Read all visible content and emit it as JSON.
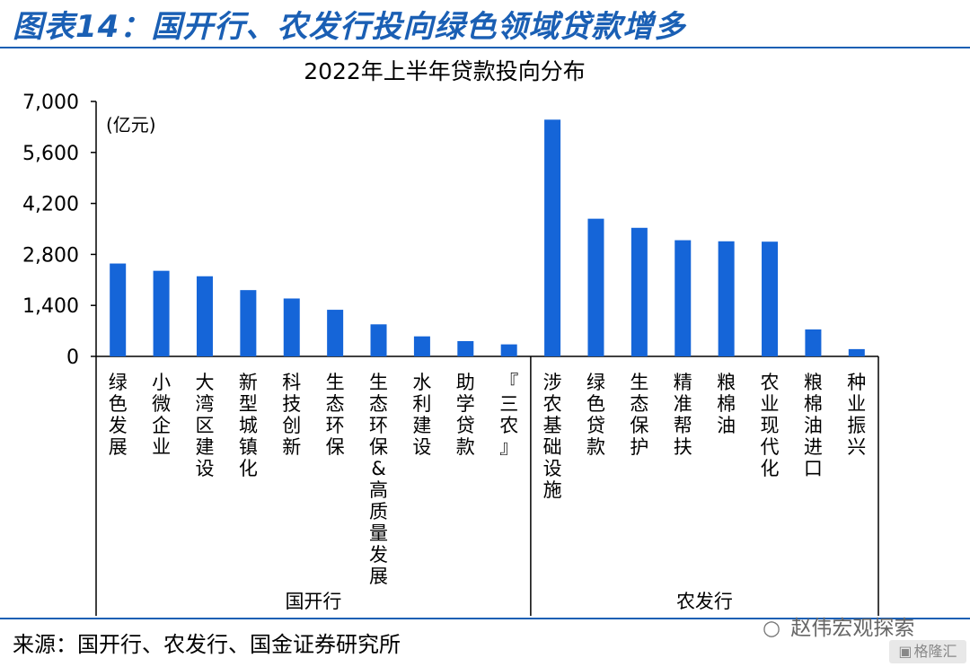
{
  "header": {
    "title": "图表14：国开行、农发行投向绿色领域贷款增多"
  },
  "source": {
    "text": "来源：国开行、农发行、国金证券研究所"
  },
  "watermark": {
    "text": "赵伟宏观探索",
    "icon": "wechat-icon"
  },
  "badge": {
    "text": "格隆汇",
    "icon": "gelonghui-logo-icon"
  },
  "colors": {
    "accent": "#1a5fb4",
    "bar": "#1565d8",
    "axis": "#000000"
  },
  "chart_data": {
    "type": "bar",
    "title": "2022年上半年贷款投向分布",
    "unit_label": "(亿元)",
    "ylim": [
      0,
      7000
    ],
    "yticks": [
      0,
      1400,
      2800,
      4200,
      5600,
      7000
    ],
    "ytick_labels": [
      "0",
      "1,400",
      "2,800",
      "4,200",
      "5,600",
      "7,000"
    ],
    "grid": false,
    "legend": "none",
    "groups": [
      {
        "name": "国开行",
        "start": 0,
        "count": 10
      },
      {
        "name": "农发行",
        "start": 10,
        "count": 8
      }
    ],
    "categories": [
      "绿色发展",
      "小微企业",
      "大湾区建设",
      "新型城镇化",
      "科技创新",
      "生态环保",
      "生态环保&高质量发展",
      "水利建设",
      "助学贷款",
      "『三农』",
      "涉农基础设施",
      "绿色贷款",
      "生态保护",
      "精准帮扶",
      "粮棉油",
      "农业现代化",
      "粮棉油进口",
      "种业振兴"
    ],
    "values": [
      2550,
      2350,
      2200,
      1820,
      1590,
      1280,
      880,
      550,
      420,
      330,
      6500,
      3780,
      3530,
      3190,
      3160,
      3150,
      740,
      200
    ]
  }
}
